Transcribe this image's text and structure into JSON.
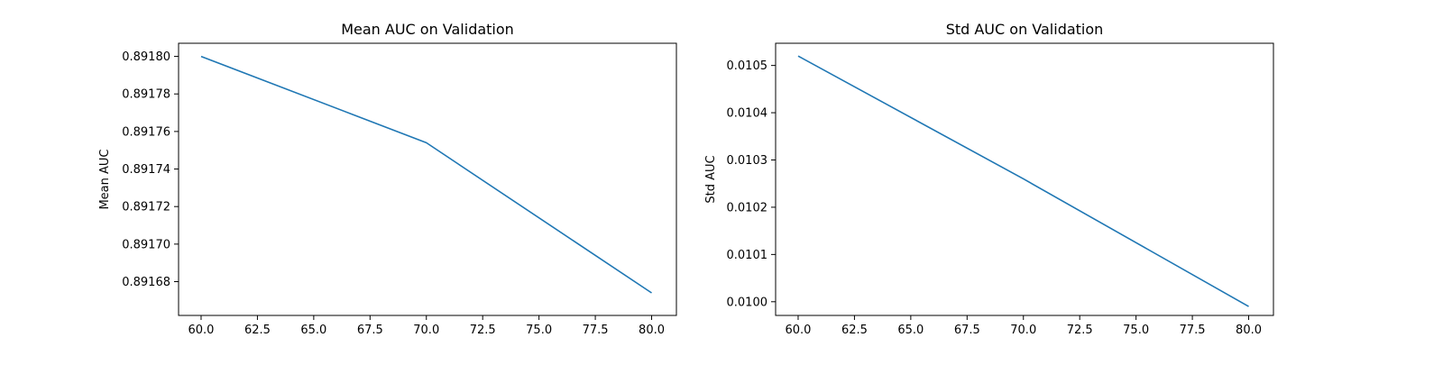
{
  "figure": {
    "background": "#ffffff",
    "line_color": "#1f77b4"
  },
  "chart_data": [
    {
      "type": "line",
      "title": "Mean AUC on Validation",
      "xlabel": "",
      "ylabel": "Mean AUC",
      "x": [
        60,
        70,
        80
      ],
      "series": [
        {
          "values": [
            0.8918,
            0.891754,
            0.891674
          ]
        }
      ],
      "xlim": [
        59,
        81.1
      ],
      "ylim": [
        0.891662,
        0.891807
      ],
      "xticks": [
        60.0,
        62.5,
        65.0,
        67.5,
        70.0,
        72.5,
        75.0,
        77.5,
        80.0
      ],
      "xtick_labels": [
        "60.0",
        "62.5",
        "65.0",
        "67.5",
        "70.0",
        "72.5",
        "75.0",
        "77.5",
        "80.0"
      ],
      "yticks": [
        0.89168,
        0.8917,
        0.89172,
        0.89174,
        0.89176,
        0.89178,
        0.8918
      ],
      "ytick_labels": [
        "0.89168",
        "0.89170",
        "0.89172",
        "0.89174",
        "0.89176",
        "0.89178",
        "0.89180"
      ],
      "grid": false,
      "legend": "none"
    },
    {
      "type": "line",
      "title": "Std AUC on Validation",
      "xlabel": "",
      "ylabel": "Std AUC",
      "x": [
        60,
        70,
        80
      ],
      "series": [
        {
          "values": [
            0.01052,
            0.01026,
            0.00999
          ]
        }
      ],
      "xlim": [
        59,
        81.1
      ],
      "ylim": [
        0.009971,
        0.010547
      ],
      "xticks": [
        60.0,
        62.5,
        65.0,
        67.5,
        70.0,
        72.5,
        75.0,
        77.5,
        80.0
      ],
      "xtick_labels": [
        "60.0",
        "62.5",
        "65.0",
        "67.5",
        "70.0",
        "72.5",
        "75.0",
        "77.5",
        "80.0"
      ],
      "yticks": [
        0.01,
        0.0101,
        0.0102,
        0.0103,
        0.0104,
        0.0105
      ],
      "ytick_labels": [
        "0.0100",
        "0.0101",
        "0.0102",
        "0.0103",
        "0.0104",
        "0.0105"
      ],
      "grid": false,
      "legend": "none"
    }
  ]
}
